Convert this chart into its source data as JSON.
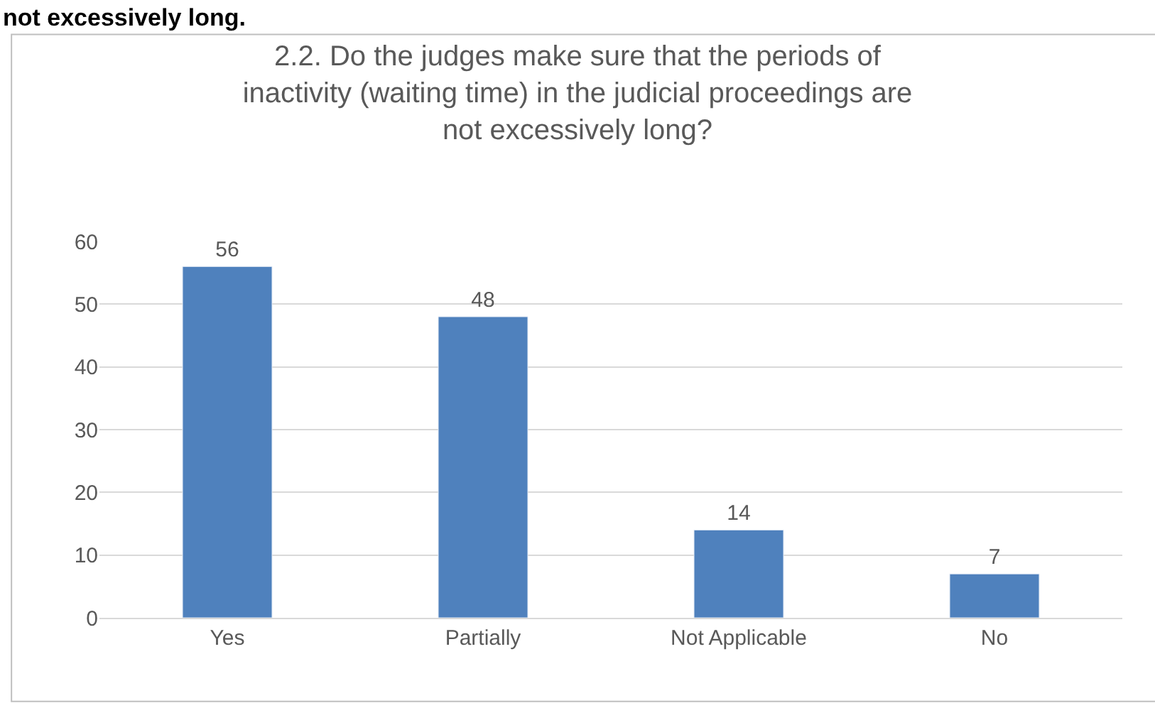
{
  "chart_data": {
    "type": "bar",
    "title": "2.2. Do the judges make sure that the periods of inactivity (waiting time) in the judicial proceedings are not excessively long?",
    "annotations": [
      "not excessively long."
    ],
    "categories": [
      "Yes",
      "Partially",
      "Not Applicable",
      "No"
    ],
    "values": [
      56,
      48,
      14,
      7
    ],
    "color": "#4f81bd",
    "ylim": [
      0,
      60
    ],
    "yticks": [
      0,
      10,
      20,
      30,
      40,
      50,
      60
    ],
    "grid": "y",
    "data_labels": true,
    "legend": false
  }
}
